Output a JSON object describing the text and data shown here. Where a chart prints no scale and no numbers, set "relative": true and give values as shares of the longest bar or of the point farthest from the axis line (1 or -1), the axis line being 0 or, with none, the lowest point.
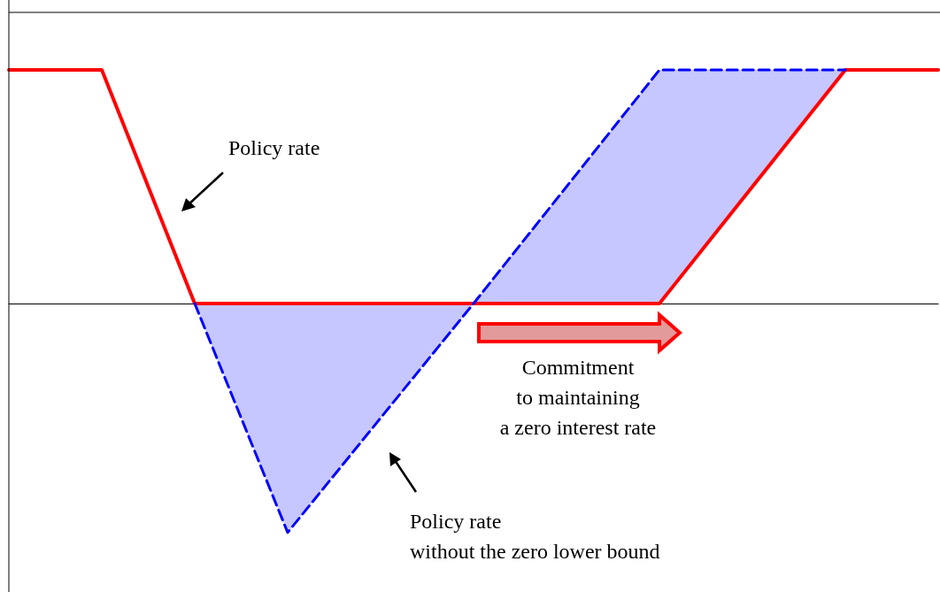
{
  "chart_data": {
    "type": "line",
    "relative": true,
    "categories": [
      null,
      null,
      null,
      null,
      null,
      null,
      null,
      null,
      null,
      null,
      null
    ],
    "series": [
      {
        "color": "#ff0000",
        "line_style": "solid",
        "values": [
          1,
          1,
          0,
          0,
          0,
          0,
          0,
          0,
          0.5,
          1,
          1
        ]
      },
      {
        "color": "#0000ff",
        "line_style": "dashed",
        "values": [
          null,
          null,
          0,
          -0.98,
          -0.49,
          0,
          0.5,
          1,
          1,
          1,
          null
        ],
        "lower": [
          null,
          null,
          0,
          -0.98,
          -0.49,
          0,
          0,
          0,
          0.5,
          1,
          null
        ],
        "upper": [
          null,
          null,
          0,
          0,
          0,
          0,
          0.5,
          1,
          1,
          1,
          null
        ]
      }
    ],
    "annotations": [
      "Policy rate",
      "Commitment\nto maintaining\na zero interest rate",
      "Policy rate\nwithout the zero lower bound"
    ],
    "marker": "none",
    "grid": false
  }
}
